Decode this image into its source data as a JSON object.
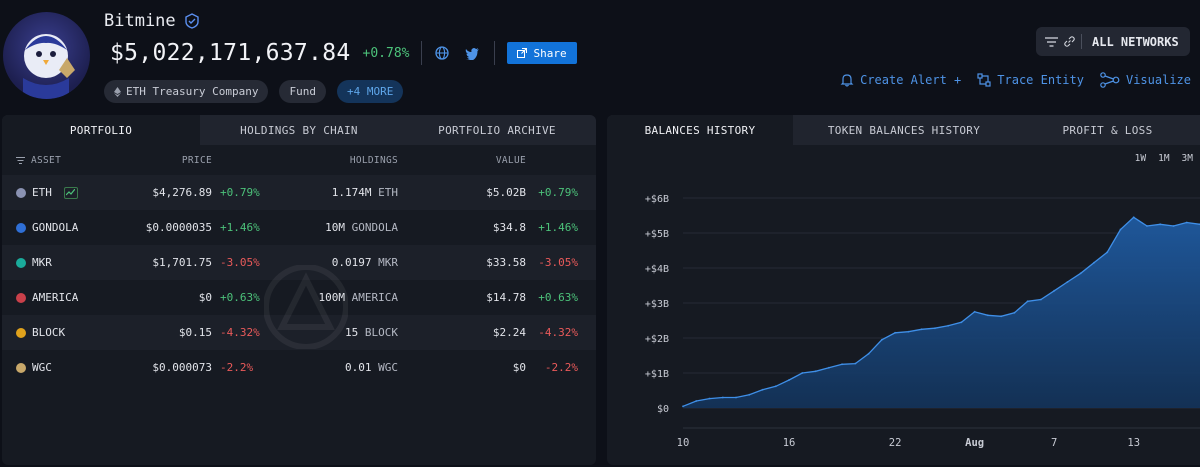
{
  "entity": {
    "name": "Bitmine",
    "total_value": "$5,022,171,637.84",
    "total_change": "+0.78%",
    "share_label": "Share",
    "tags": [
      "ETH Treasury Company",
      "Fund",
      "+4 MORE"
    ]
  },
  "header_actions": {
    "networks_label": "ALL NETWORKS",
    "create_alert": "Create Alert +",
    "trace_entity": "Trace Entity",
    "visualize": "Visualize"
  },
  "portfolio": {
    "tabs": [
      "PORTFOLIO",
      "HOLDINGS BY CHAIN",
      "PORTFOLIO ARCHIVE"
    ],
    "columns": {
      "asset": "ASSET",
      "price": "PRICE",
      "holdings": "HOLDINGS",
      "value": "VALUE"
    },
    "rows": [
      {
        "asset": "ETH",
        "price": "$4,276.89",
        "price_change": "+0.79%",
        "holdings": "1.174M",
        "unit": "ETH",
        "value": "$5.02B",
        "value_change": "+0.79%",
        "dir": "pos",
        "color": "#8a92b2"
      },
      {
        "asset": "GONDOLA",
        "price": "$0.0000035",
        "price_change": "+1.46%",
        "holdings": "10M",
        "unit": "GONDOLA",
        "value": "$34.8",
        "value_change": "+1.46%",
        "dir": "pos",
        "color": "#2f6fd6"
      },
      {
        "asset": "MKR",
        "price": "$1,701.75",
        "price_change": "-3.05%",
        "holdings": "0.0197",
        "unit": "MKR",
        "value": "$33.58",
        "value_change": "-3.05%",
        "dir": "neg",
        "color": "#1aab9b"
      },
      {
        "asset": "AMERICA",
        "price": "$0",
        "price_change": "+0.63%",
        "holdings": "100M",
        "unit": "AMERICA",
        "value": "$14.78",
        "value_change": "+0.63%",
        "dir": "pos",
        "color": "#c9404a"
      },
      {
        "asset": "BLOCK",
        "price": "$0.15",
        "price_change": "-4.32%",
        "holdings": "15",
        "unit": "BLOCK",
        "value": "$2.24",
        "value_change": "-4.32%",
        "dir": "neg",
        "color": "#e0a21c"
      },
      {
        "asset": "WGC",
        "price": "$0.000073",
        "price_change": "-2.2%",
        "holdings": "0.01",
        "unit": "WGC",
        "value": "$0",
        "value_change": "-2.2%",
        "dir": "neg",
        "color": "#c8a86a"
      }
    ]
  },
  "balances": {
    "tabs": [
      "BALANCES HISTORY",
      "TOKEN BALANCES HISTORY",
      "PROFIT & LOSS"
    ],
    "ranges": [
      "1W",
      "1M",
      "3M"
    ]
  },
  "colors": {
    "accent": "#1273d9",
    "positive": "#4cc27a",
    "negative": "#ea5a5a",
    "area": "#1f5aa0"
  },
  "chart_data": {
    "type": "area",
    "x_ticks": [
      "10",
      "16",
      "22",
      "Aug",
      "7",
      "13"
    ],
    "y_ticks": [
      "$0",
      "+$1B",
      "+$2B",
      "+$3B",
      "+$4B",
      "+$5B",
      "+$6B"
    ],
    "ylim": [
      0,
      6
    ],
    "x_unit_days_from": "Jul 10",
    "x": [
      0,
      1,
      2,
      3,
      4,
      5,
      6,
      7,
      8,
      9,
      10,
      11,
      12,
      13,
      14,
      15,
      16,
      17,
      18,
      19,
      20,
      21,
      22,
      23,
      24,
      25,
      26,
      27,
      28,
      29,
      30,
      31,
      32,
      33,
      34,
      35,
      36,
      37,
      38,
      39
    ],
    "values": [
      0.05,
      0.2,
      0.27,
      0.3,
      0.3,
      0.38,
      0.52,
      0.62,
      0.8,
      1.0,
      1.05,
      1.15,
      1.25,
      1.27,
      1.55,
      1.95,
      2.15,
      2.18,
      2.25,
      2.28,
      2.35,
      2.45,
      2.75,
      2.65,
      2.62,
      2.72,
      3.05,
      3.1,
      3.35,
      3.6,
      3.85,
      4.15,
      4.45,
      5.1,
      5.45,
      5.2,
      5.25,
      5.2,
      5.3,
      5.25
    ]
  }
}
